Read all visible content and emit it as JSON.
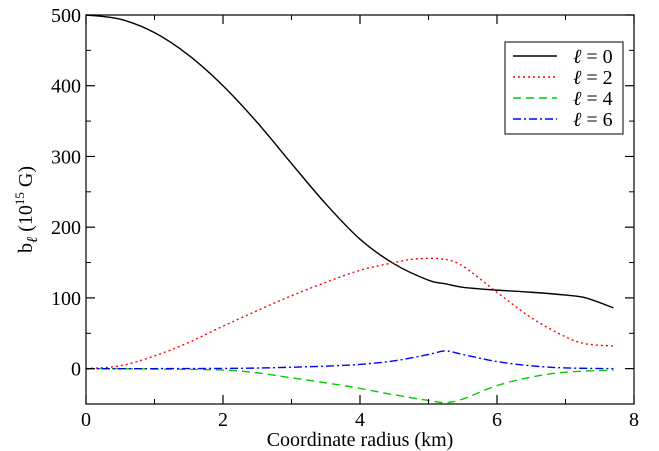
{
  "chart_data": {
    "type": "line",
    "xlabel": "Coordinate radius (km)",
    "ylabel": {
      "main": "b",
      "subscript": "ℓ",
      "open": " (10",
      "exponent": "15",
      "unit": " G)"
    },
    "xlim": [
      0,
      8
    ],
    "ylim": [
      -50,
      500
    ],
    "x_ticks": [
      0,
      2,
      4,
      6,
      8
    ],
    "y_ticks": [
      0,
      100,
      200,
      300,
      400,
      500
    ],
    "x_tick_labels": [
      "0",
      "2",
      "4",
      "6",
      "8"
    ],
    "y_tick_labels": [
      "0",
      "100",
      "200",
      "300",
      "400",
      "500"
    ],
    "grid": false,
    "legend_position": "top-right",
    "series": [
      {
        "symbol": "ℓ",
        "label_value": "= 0",
        "color": "#000000",
        "dash": "",
        "x": [
          0,
          0.5,
          1,
          1.5,
          2,
          2.5,
          3,
          3.5,
          4,
          4.5,
          5,
          5.25,
          5.5,
          6,
          6.5,
          7,
          7.3,
          7.7
        ],
        "y": [
          500,
          494,
          475,
          443,
          400,
          348,
          290,
          233,
          183,
          148,
          125,
          120,
          115,
          111,
          108,
          104,
          100,
          86
        ]
      },
      {
        "symbol": "ℓ",
        "label_value": "= 2",
        "color": "#ff0000",
        "dash": "2,3",
        "x": [
          0,
          0.5,
          1,
          1.5,
          2,
          2.5,
          3,
          3.5,
          4,
          4.5,
          4.8,
          5.2,
          5.5,
          6,
          6.5,
          7,
          7.3,
          7.7
        ],
        "y": [
          0,
          4,
          18,
          37,
          60,
          82,
          103,
          122,
          139,
          150,
          155,
          155,
          145,
          108,
          72,
          45,
          35,
          32
        ]
      },
      {
        "symbol": "ℓ",
        "label_value": "= 4",
        "color": "#00cc00",
        "dash": "8,5",
        "x": [
          0,
          1,
          2,
          2.5,
          3,
          3.5,
          4,
          4.5,
          5,
          5.25,
          5.5,
          6,
          6.5,
          7,
          7.7
        ],
        "y": [
          0,
          -0.5,
          -2,
          -6,
          -13,
          -20,
          -28,
          -37,
          -45,
          -48,
          -43,
          -24,
          -12,
          -5,
          -2
        ]
      },
      {
        "symbol": "ℓ",
        "label_value": "= 6",
        "color": "#0000ff",
        "dash": "8,3,2,3",
        "x": [
          0,
          1,
          2,
          2.5,
          3,
          3.5,
          4,
          4.5,
          5,
          5.25,
          5.5,
          6,
          6.5,
          7,
          7.7
        ],
        "y": [
          0,
          0,
          0.3,
          0.8,
          2,
          3.5,
          6,
          11,
          20,
          25,
          20,
          10,
          4,
          1,
          0
        ]
      }
    ]
  }
}
